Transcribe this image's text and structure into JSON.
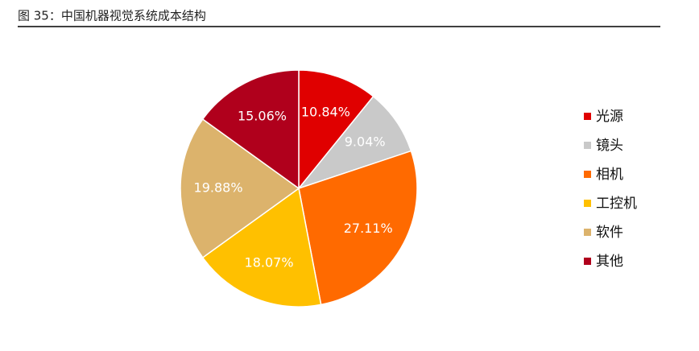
{
  "chart_data": {
    "type": "pie",
    "title": "图 35：中国机器视觉系统成本结构",
    "categories": [
      "光源",
      "镜头",
      "相机",
      "工控机",
      "软件",
      "其他"
    ],
    "values": [
      10.84,
      9.04,
      27.11,
      18.07,
      19.88,
      15.06
    ],
    "value_labels": [
      "10.84%",
      "9.04%",
      "27.11%",
      "18.07%",
      "19.88%",
      "15.06%"
    ],
    "colors": [
      "#e00000",
      "#c9c9c9",
      "#ff6a00",
      "#ffc000",
      "#dcb36c",
      "#b0001c"
    ],
    "legend": "right"
  }
}
